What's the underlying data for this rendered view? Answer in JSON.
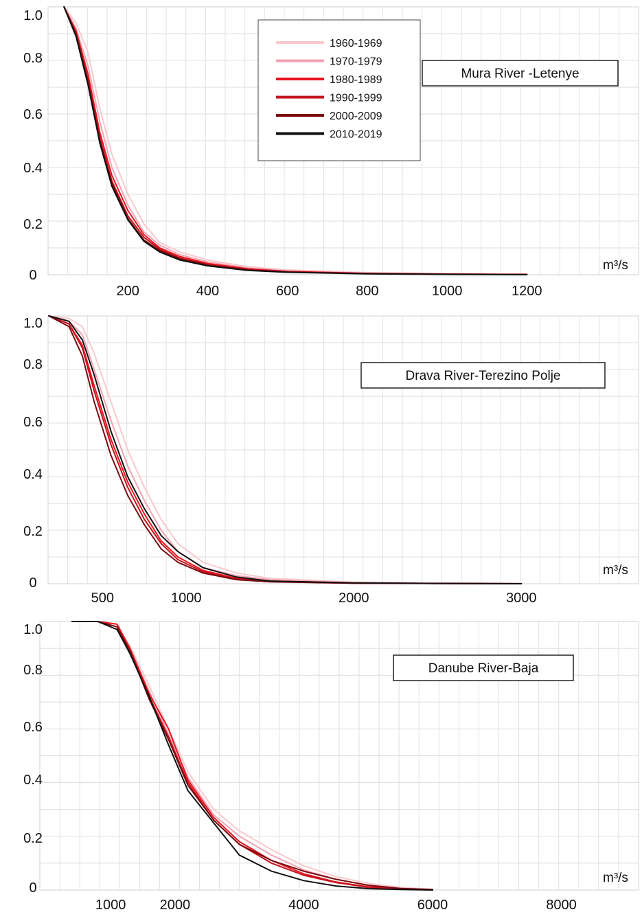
{
  "chart_data": [
    {
      "type": "line",
      "title": "Mura River -Letenye",
      "unit": "m³/s",
      "xlabel": "",
      "ylabel": "",
      "x_ticks": [
        200,
        400,
        600,
        800,
        1000,
        1200
      ],
      "y_ticks": [
        0,
        0.2,
        0.4,
        0.6,
        0.8,
        1.0
      ],
      "y_tick_labels": [
        "0",
        "0.2",
        "0.4",
        "0.6",
        "0.8",
        "1.0"
      ],
      "xlim": [
        0,
        1480
      ],
      "ylim": [
        0,
        1.0
      ],
      "grid": true,
      "legend": "top-center",
      "series": [
        {
          "name": "1960-1969",
          "color": "#f9c9cc",
          "x": [
            40,
            70,
            100,
            130,
            160,
            200,
            240,
            280,
            330,
            400,
            500,
            600,
            800,
            1000,
            1200
          ],
          "y": [
            1.0,
            0.94,
            0.83,
            0.62,
            0.45,
            0.3,
            0.19,
            0.12,
            0.085,
            0.055,
            0.03,
            0.018,
            0.008,
            0.004,
            0.002
          ]
        },
        {
          "name": "1970-1979",
          "color": "#f4a3b3",
          "x": [
            40,
            70,
            100,
            130,
            160,
            200,
            240,
            280,
            330,
            400,
            500,
            600,
            800,
            1000,
            1200
          ],
          "y": [
            1.0,
            0.92,
            0.78,
            0.57,
            0.4,
            0.26,
            0.16,
            0.11,
            0.075,
            0.048,
            0.025,
            0.014,
            0.006,
            0.003,
            0.001
          ]
        },
        {
          "name": "1980-1989",
          "color": "#e8141e",
          "x": [
            40,
            70,
            100,
            130,
            160,
            200,
            240,
            280,
            330,
            400,
            500,
            600,
            800,
            1000,
            1200
          ],
          "y": [
            1.0,
            0.91,
            0.75,
            0.53,
            0.37,
            0.24,
            0.15,
            0.1,
            0.068,
            0.042,
            0.022,
            0.012,
            0.005,
            0.002,
            0.001
          ]
        },
        {
          "name": "1990-1999",
          "color": "#c4101c",
          "x": [
            40,
            70,
            100,
            130,
            160,
            200,
            240,
            280,
            330,
            400,
            500,
            600,
            800,
            1000,
            1200
          ],
          "y": [
            1.0,
            0.9,
            0.73,
            0.51,
            0.35,
            0.22,
            0.14,
            0.095,
            0.062,
            0.038,
            0.02,
            0.011,
            0.004,
            0.002,
            0.001
          ]
        },
        {
          "name": "2000-2009",
          "color": "#7a0a10",
          "x": [
            40,
            70,
            100,
            130,
            160,
            200,
            240,
            280,
            330,
            400,
            500,
            600,
            800,
            1000,
            1200
          ],
          "y": [
            1.0,
            0.9,
            0.72,
            0.5,
            0.34,
            0.21,
            0.13,
            0.09,
            0.06,
            0.036,
            0.018,
            0.01,
            0.004,
            0.002,
            0.001
          ]
        },
        {
          "name": "2010-2019",
          "color": "#111111",
          "x": [
            40,
            70,
            100,
            130,
            160,
            200,
            240,
            280,
            330,
            400,
            500,
            600,
            800,
            1000,
            1200
          ],
          "y": [
            1.0,
            0.89,
            0.71,
            0.49,
            0.33,
            0.205,
            0.125,
            0.085,
            0.055,
            0.033,
            0.016,
            0.009,
            0.003,
            0.001,
            0.0
          ]
        }
      ]
    },
    {
      "type": "line",
      "title": "Drava River-Terezino Polje",
      "unit": "m³/s",
      "xlabel": "",
      "ylabel": "",
      "x_ticks": [
        500,
        1000,
        2000,
        3000
      ],
      "y_ticks": [
        0,
        0.2,
        0.4,
        0.6,
        0.8,
        1.0
      ],
      "y_tick_labels": [
        "0",
        "0.2",
        "0.4",
        "0.6",
        "0.8",
        "1.0"
      ],
      "xlim": [
        175,
        3700
      ],
      "ylim": [
        0,
        1.0
      ],
      "grid": true,
      "series": [
        {
          "name": "1960-1969",
          "color": "#f9c9cc",
          "x": [
            180,
            300,
            380,
            450,
            550,
            650,
            750,
            850,
            950,
            1100,
            1300,
            1500,
            2000,
            2500,
            3000
          ],
          "y": [
            1.0,
            0.99,
            0.96,
            0.86,
            0.68,
            0.5,
            0.36,
            0.24,
            0.15,
            0.08,
            0.04,
            0.02,
            0.006,
            0.003,
            0.001
          ]
        },
        {
          "name": "1970-1979",
          "color": "#f4a3b3",
          "x": [
            180,
            300,
            380,
            450,
            550,
            650,
            750,
            850,
            950,
            1100,
            1300,
            1500,
            2000,
            2500,
            3000
          ],
          "y": [
            1.0,
            0.98,
            0.93,
            0.8,
            0.61,
            0.44,
            0.31,
            0.2,
            0.12,
            0.06,
            0.03,
            0.015,
            0.004,
            0.002,
            0.001
          ]
        },
        {
          "name": "1980-1989",
          "color": "#e8141e",
          "x": [
            180,
            300,
            380,
            450,
            550,
            650,
            750,
            850,
            950,
            1100,
            1300,
            1500,
            2000,
            2500,
            3000
          ],
          "y": [
            1.0,
            0.97,
            0.89,
            0.74,
            0.54,
            0.38,
            0.26,
            0.16,
            0.1,
            0.05,
            0.02,
            0.01,
            0.003,
            0.001,
            0.0
          ]
        },
        {
          "name": "1990-1999",
          "color": "#c4101c",
          "x": [
            180,
            300,
            380,
            450,
            550,
            650,
            750,
            850,
            950,
            1100,
            1300,
            1500,
            2000,
            2500,
            3000
          ],
          "y": [
            1.0,
            0.97,
            0.88,
            0.72,
            0.52,
            0.36,
            0.24,
            0.15,
            0.09,
            0.045,
            0.018,
            0.008,
            0.002,
            0.001,
            0.0
          ]
        },
        {
          "name": "2000-2009",
          "color": "#7a0a10",
          "x": [
            180,
            300,
            380,
            450,
            550,
            650,
            750,
            850,
            950,
            1100,
            1300,
            1500,
            2000,
            2500,
            3000
          ],
          "y": [
            1.0,
            0.96,
            0.85,
            0.68,
            0.48,
            0.33,
            0.22,
            0.13,
            0.08,
            0.04,
            0.015,
            0.007,
            0.002,
            0.001,
            0.0
          ]
        },
        {
          "name": "2010-2019",
          "color": "#111111",
          "x": [
            180,
            300,
            380,
            450,
            550,
            650,
            750,
            850,
            950,
            1100,
            1300,
            1500,
            2000,
            2500,
            3000
          ],
          "y": [
            1.0,
            0.98,
            0.91,
            0.78,
            0.57,
            0.4,
            0.28,
            0.18,
            0.12,
            0.06,
            0.025,
            0.01,
            0.003,
            0.001,
            0.0
          ]
        }
      ]
    },
    {
      "type": "line",
      "title": "Danube River-Baja",
      "unit": "m³/s",
      "xlabel": "",
      "ylabel": "",
      "x_ticks": [
        1000,
        2000,
        4000,
        6000,
        8000
      ],
      "y_ticks": [
        0,
        0.2,
        0.4,
        0.6,
        0.8,
        1.0
      ],
      "y_tick_labels": [
        "0",
        "0.2",
        "0.4",
        "0.6",
        "0.8",
        "1.0"
      ],
      "xlim": [
        -100,
        9200
      ],
      "ylim": [
        0,
        1.0
      ],
      "grid": true,
      "series": [
        {
          "name": "1960-1969",
          "color": "#f9c9cc",
          "x": [
            400,
            800,
            1100,
            1300,
            1600,
            1900,
            2200,
            2600,
            3000,
            3500,
            4000,
            4500,
            5000,
            5500,
            6000
          ],
          "y": [
            1.0,
            1.0,
            0.98,
            0.91,
            0.76,
            0.6,
            0.44,
            0.3,
            0.22,
            0.15,
            0.09,
            0.05,
            0.025,
            0.01,
            0.003
          ]
        },
        {
          "name": "1970-1979",
          "color": "#f4a3b3",
          "x": [
            400,
            800,
            1100,
            1300,
            1600,
            1900,
            2200,
            2600,
            3000,
            3500,
            4000,
            4500,
            5000,
            5500,
            6000
          ],
          "y": [
            1.0,
            1.0,
            0.98,
            0.9,
            0.74,
            0.58,
            0.42,
            0.28,
            0.2,
            0.13,
            0.075,
            0.04,
            0.018,
            0.007,
            0.002
          ]
        },
        {
          "name": "1980-1989",
          "color": "#e8141e",
          "x": [
            400,
            800,
            1100,
            1300,
            1600,
            1900,
            2200,
            2600,
            3000,
            3500,
            4000,
            4500,
            5000,
            5500,
            6000
          ],
          "y": [
            1.0,
            1.0,
            0.99,
            0.9,
            0.73,
            0.6,
            0.41,
            0.27,
            0.18,
            0.11,
            0.06,
            0.03,
            0.012,
            0.004,
            0.001
          ]
        },
        {
          "name": "1990-1999",
          "color": "#c4101c",
          "x": [
            400,
            800,
            1100,
            1300,
            1600,
            1900,
            2200,
            2600,
            3000,
            3500,
            4000,
            4500,
            5000,
            5500,
            6000
          ],
          "y": [
            1.0,
            1.0,
            0.98,
            0.89,
            0.72,
            0.57,
            0.4,
            0.26,
            0.17,
            0.1,
            0.055,
            0.028,
            0.01,
            0.004,
            0.001
          ]
        },
        {
          "name": "2000-2009",
          "color": "#7a0a10",
          "x": [
            400,
            800,
            1100,
            1300,
            1600,
            1900,
            2200,
            2600,
            3000,
            3500,
            4000,
            4500,
            5000,
            5500,
            6000
          ],
          "y": [
            1.0,
            1.0,
            0.98,
            0.89,
            0.71,
            0.56,
            0.39,
            0.26,
            0.17,
            0.11,
            0.07,
            0.04,
            0.018,
            0.006,
            0.002
          ]
        },
        {
          "name": "2010-2019",
          "color": "#111111",
          "x": [
            400,
            800,
            1100,
            1300,
            1600,
            1900,
            2200,
            2600,
            3000,
            3500,
            4000,
            4500,
            5000,
            5500,
            6000
          ],
          "y": [
            1.0,
            1.0,
            0.97,
            0.88,
            0.72,
            0.54,
            0.37,
            0.25,
            0.13,
            0.07,
            0.035,
            0.015,
            0.005,
            0.002,
            0.0
          ]
        }
      ]
    }
  ]
}
